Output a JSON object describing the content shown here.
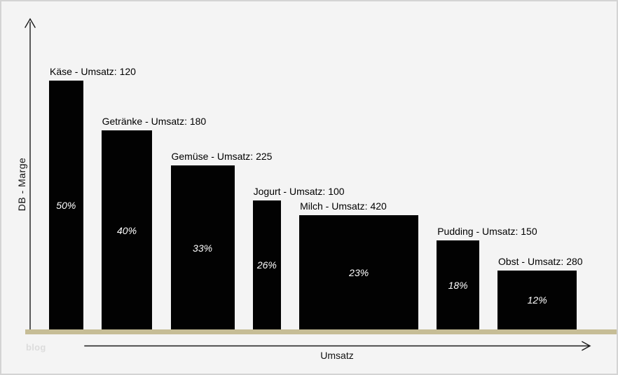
{
  "watermark": "blog",
  "axes": {
    "y_label": "DB - Marge",
    "x_label": "Umsatz"
  },
  "colors": {
    "background": "#f4f4f4",
    "border": "#d4d4d4",
    "bar": "#020202",
    "baseline_strip": "#c6bd96",
    "bar_label_text": "#000000",
    "percent_label_text": "#ffffff",
    "watermark_text": "#dcdcdc",
    "axis_line": "#1a1a1a"
  },
  "chart_data": {
    "type": "bar",
    "variant": "variable-width bar (bar-mekko): width proportional to Umsatz, height proportional to DB-Marge %",
    "title": "",
    "xlabel": "Umsatz",
    "ylabel": "DB - Marge",
    "grid": false,
    "legend": false,
    "axis_style": "unscaled arrows, no tick marks",
    "categories": [
      "Käse",
      "Getränke",
      "Gemüse",
      "Jogurt",
      "Milch",
      "Pudding",
      "Obst"
    ],
    "series": [
      {
        "name": "Umsatz (bar width)",
        "values": [
          120,
          180,
          225,
          100,
          420,
          150,
          280
        ]
      },
      {
        "name": "DB-Marge % (bar height)",
        "values": [
          50,
          40,
          33,
          26,
          23,
          18,
          12
        ]
      }
    ],
    "products": [
      {
        "name": "Käse",
        "umsatz": 120,
        "marge_pct": 50,
        "label": "Käse - Umsatz: 120",
        "pct_label": "50%"
      },
      {
        "name": "Getränke",
        "umsatz": 180,
        "marge_pct": 40,
        "label": "Getränke - Umsatz: 180",
        "pct_label": "40%"
      },
      {
        "name": "Gemüse",
        "umsatz": 225,
        "marge_pct": 33,
        "label": "Gemüse - Umsatz: 225",
        "pct_label": "33%"
      },
      {
        "name": "Jogurt",
        "umsatz": 100,
        "marge_pct": 26,
        "label": "Jogurt - Umsatz: 100",
        "pct_label": "26%"
      },
      {
        "name": "Milch",
        "umsatz": 420,
        "marge_pct": 23,
        "label": "Milch - Umsatz: 420",
        "pct_label": "23%"
      },
      {
        "name": "Pudding",
        "umsatz": 150,
        "marge_pct": 18,
        "label": "Pudding - Umsatz: 150",
        "pct_label": "18%"
      },
      {
        "name": "Obst",
        "umsatz": 280,
        "marge_pct": 12,
        "label": "Obst - Umsatz: 280",
        "pct_label": "12%"
      }
    ]
  }
}
